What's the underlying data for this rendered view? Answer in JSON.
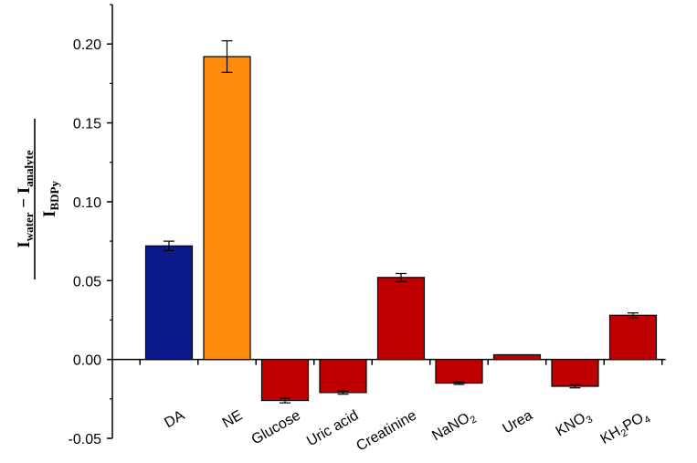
{
  "chart_data": {
    "type": "bar",
    "title": "",
    "ylabel": {
      "numerator": "I",
      "numerator_sub_1": "water",
      "minus": " − ",
      "numerator_2": "I",
      "numerator_sub_2": "analyte",
      "denominator": "I",
      "denominator_sub": "BDPy"
    },
    "xlabel": "",
    "categories": [
      {
        "base": "DA",
        "sub": "",
        "tail": ""
      },
      {
        "base": "NE",
        "sub": "",
        "tail": ""
      },
      {
        "base": "Glucose",
        "sub": "",
        "tail": ""
      },
      {
        "base": "Uric acid",
        "sub": "",
        "tail": ""
      },
      {
        "base": "Creatinine",
        "sub": "",
        "tail": ""
      },
      {
        "base": "NaNO",
        "sub": "2",
        "tail": ""
      },
      {
        "base": "Urea",
        "sub": "",
        "tail": ""
      },
      {
        "base": "KNO",
        "sub": "3",
        "tail": ""
      },
      {
        "base": "KH",
        "sub": "2",
        "tail": "PO",
        "sub2": "4"
      }
    ],
    "values": [
      0.072,
      0.192,
      -0.026,
      -0.021,
      0.052,
      -0.015,
      0.003,
      -0.017,
      0.028
    ],
    "errors": [
      0.003,
      0.01,
      0.0015,
      0.001,
      0.0025,
      0.0008,
      0,
      0.001,
      0.0015
    ],
    "colors": [
      "#0b1a8a",
      "#ff8c0a",
      "#c00000",
      "#c00000",
      "#c00000",
      "#c00000",
      "#c00000",
      "#c00000",
      "#c00000"
    ],
    "ylim": [
      -0.05,
      0.225
    ],
    "yticks": [
      "-0.05",
      "0.00",
      "0.05",
      "0.10",
      "0.15",
      "0.20"
    ],
    "ytick_values": [
      -0.05,
      0.0,
      0.05,
      0.1,
      0.15,
      0.2
    ],
    "grid": false,
    "legend": "none"
  }
}
